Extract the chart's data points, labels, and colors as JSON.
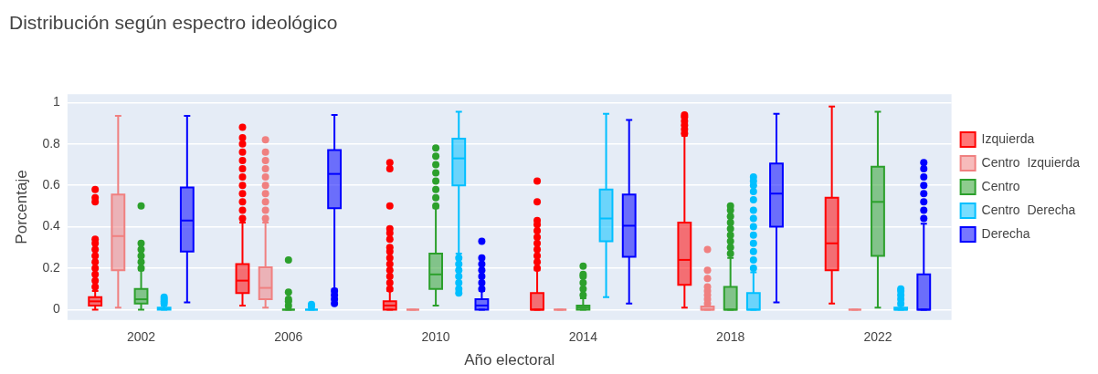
{
  "chart_data": {
    "type": "box",
    "title": "Distribución según espectro ideológico",
    "xlabel": "Año electoral",
    "ylabel": "Porcentaje",
    "categories": [
      "2002",
      "2006",
      "2010",
      "2014",
      "2018",
      "2022"
    ],
    "ylim": [
      -0.05,
      1.04
    ],
    "yticks": [
      0,
      0.2,
      0.4,
      0.6,
      0.8,
      1
    ],
    "grid": "y",
    "legend": "right",
    "marker": "circle",
    "series": [
      {
        "name": "Izquierda",
        "color": "#ff0000",
        "boxes": [
          {
            "low": 0,
            "q1": 0.02,
            "median": 0.04,
            "q3": 0.06,
            "high": 0.09,
            "outliers": [
              0.11,
              0.14,
              0.17,
              0.2,
              0.23,
              0.26,
              0.29,
              0.32,
              0.34,
              0.52,
              0.54,
              0.58
            ]
          },
          {
            "low": 0.02,
            "q1": 0.08,
            "median": 0.14,
            "q3": 0.22,
            "high": 0.42,
            "outliers": [
              0.44,
              0.48,
              0.52,
              0.56,
              0.6,
              0.64,
              0.68,
              0.72,
              0.76,
              0.8,
              0.83,
              0.88
            ]
          },
          {
            "low": 0,
            "q1": 0,
            "median": 0.02,
            "q3": 0.04,
            "high": 0.09,
            "outliers": [
              0.1,
              0.13,
              0.16,
              0.19,
              0.22,
              0.25,
              0.28,
              0.3,
              0.34,
              0.37,
              0.39,
              0.5,
              0.68,
              0.71
            ]
          },
          {
            "low": 0,
            "q1": 0,
            "median": 0,
            "q3": 0.08,
            "high": 0.19,
            "outliers": [
              0.2,
              0.23,
              0.26,
              0.29,
              0.32,
              0.35,
              0.38,
              0.41,
              0.43,
              0.52,
              0.62
            ]
          },
          {
            "low": 0.01,
            "q1": 0.12,
            "median": 0.24,
            "q3": 0.42,
            "high": 0.84,
            "outliers": [
              0.85,
              0.87,
              0.89,
              0.91,
              0.93,
              0.94
            ]
          },
          {
            "low": 0.03,
            "q1": 0.19,
            "median": 0.32,
            "q3": 0.54,
            "high": 0.98
          }
        ]
      },
      {
        "name": "Centro  Izquierda",
        "color": "#f08080",
        "boxes": [
          {
            "low": 0.01,
            "q1": 0.19,
            "median": 0.355,
            "q3": 0.555,
            "high": 0.935
          },
          {
            "low": 0.01,
            "q1": 0.05,
            "median": 0.105,
            "q3": 0.205,
            "high": 0.42,
            "outliers": [
              0.44,
              0.48,
              0.52,
              0.56,
              0.6,
              0.64,
              0.68,
              0.72,
              0.76,
              0.82
            ]
          },
          {
            "low": 0,
            "q1": 0,
            "median": 0,
            "q3": 0,
            "high": 0
          },
          {
            "low": 0,
            "q1": 0,
            "median": 0,
            "q3": 0,
            "high": 0
          },
          {
            "low": 0,
            "q1": 0,
            "median": 0,
            "q3": 0.015,
            "high": 0.02,
            "outliers": [
              0.03,
              0.05,
              0.07,
              0.09,
              0.11,
              0.15,
              0.19,
              0.29
            ]
          },
          {
            "low": 0,
            "q1": 0,
            "median": 0,
            "q3": 0,
            "high": 0
          }
        ]
      },
      {
        "name": "Centro",
        "color": "#2ca02c",
        "boxes": [
          {
            "low": 0,
            "q1": 0.03,
            "median": 0.05,
            "q3": 0.1,
            "high": 0.19,
            "outliers": [
              0.2,
              0.23,
              0.26,
              0.29,
              0.32,
              0.5
            ]
          },
          {
            "low": 0,
            "q1": 0,
            "median": 0,
            "q3": 0,
            "high": 0.01,
            "outliers": [
              0.02,
              0.04,
              0.05,
              0.085,
              0.24
            ]
          },
          {
            "low": 0.02,
            "q1": 0.1,
            "median": 0.17,
            "q3": 0.27,
            "high": 0.49,
            "outliers": [
              0.5,
              0.54,
              0.58,
              0.62,
              0.66,
              0.7,
              0.74,
              0.78
            ]
          },
          {
            "low": 0,
            "q1": 0,
            "median": 0.01,
            "q3": 0.02,
            "high": 0.055,
            "outliers": [
              0.07,
              0.1,
              0.13,
              0.16,
              0.17,
              0.21
            ]
          },
          {
            "low": 0,
            "q1": 0,
            "median": 0,
            "q3": 0.11,
            "high": 0.25,
            "outliers": [
              0.27,
              0.3,
              0.33,
              0.36,
              0.39,
              0.42,
              0.45,
              0.48,
              0.5
            ]
          },
          {
            "low": 0.01,
            "q1": 0.26,
            "median": 0.52,
            "q3": 0.69,
            "high": 0.955
          }
        ]
      },
      {
        "name": "Centro  Derecha",
        "color": "#00bfff",
        "boxes": [
          {
            "low": 0,
            "q1": 0,
            "median": 0.005,
            "q3": 0.01,
            "high": 0.02,
            "outliers": [
              0.03,
              0.04,
              0.05,
              0.06
            ]
          },
          {
            "low": 0,
            "q1": 0,
            "median": 0,
            "q3": 0,
            "high": 0.005,
            "outliers": [
              0.015,
              0.025
            ]
          },
          {
            "low": 0.27,
            "q1": 0.6,
            "median": 0.73,
            "q3": 0.825,
            "high": 0.955,
            "outliers": [
              0.08,
              0.1,
              0.13,
              0.16,
              0.19,
              0.22,
              0.25
            ]
          },
          {
            "low": 0.06,
            "q1": 0.33,
            "median": 0.44,
            "q3": 0.58,
            "high": 0.945
          },
          {
            "low": 0,
            "q1": 0,
            "median": 0,
            "q3": 0.08,
            "high": 0.18,
            "outliers": [
              0.2,
              0.24,
              0.28,
              0.32,
              0.36,
              0.4,
              0.44,
              0.48,
              0.53,
              0.57,
              0.6,
              0.62,
              0.64
            ]
          },
          {
            "low": 0,
            "q1": 0,
            "median": 0,
            "q3": 0.01,
            "high": 0.02,
            "outliers": [
              0.03,
              0.05,
              0.07,
              0.09,
              0.1
            ]
          }
        ]
      },
      {
        "name": "Derecha",
        "color": "#0000ff",
        "boxes": [
          {
            "low": 0.035,
            "q1": 0.28,
            "median": 0.43,
            "q3": 0.59,
            "high": 0.935
          },
          {
            "low": 0.1,
            "q1": 0.49,
            "median": 0.655,
            "q3": 0.77,
            "high": 0.94,
            "outliers": [
              0.03,
              0.05,
              0.07,
              0.09
            ]
          },
          {
            "low": 0,
            "q1": 0,
            "median": 0.02,
            "q3": 0.05,
            "high": 0.09,
            "outliers": [
              0.1,
              0.13,
              0.16,
              0.19,
              0.22,
              0.25,
              0.33
            ]
          },
          {
            "low": 0.03,
            "q1": 0.255,
            "median": 0.405,
            "q3": 0.555,
            "high": 0.915
          },
          {
            "low": 0.035,
            "q1": 0.4,
            "median": 0.56,
            "q3": 0.705,
            "high": 0.945
          },
          {
            "low": 0,
            "q1": 0,
            "median": 0,
            "q3": 0.17,
            "high": 0.415,
            "outliers": [
              0.44,
              0.48,
              0.52,
              0.56,
              0.6,
              0.64,
              0.68,
              0.71
            ]
          }
        ]
      }
    ]
  }
}
